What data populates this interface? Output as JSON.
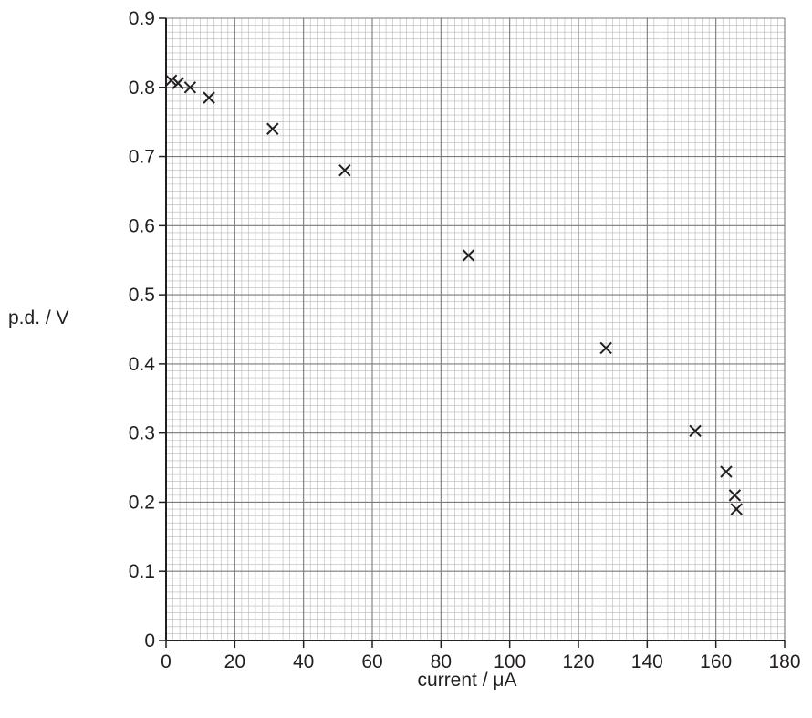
{
  "chart_data": {
    "type": "scatter",
    "title": "",
    "xlabel": "current / μA",
    "ylabel": "p.d. / V",
    "xlim": [
      0,
      180
    ],
    "ylim": [
      0,
      0.9
    ],
    "grid": true,
    "x_ticks": [
      "0",
      "20",
      "40",
      "60",
      "80",
      "100",
      "120",
      "140",
      "160",
      "180"
    ],
    "y_ticks": [
      "0",
      "0.1",
      "0.2",
      "0.3",
      "0.4",
      "0.5",
      "0.6",
      "0.7",
      "0.8",
      "0.9"
    ],
    "series": [
      {
        "marker": "x",
        "color": "#231f20",
        "points": [
          {
            "x": 1.5,
            "y": 0.81
          },
          {
            "x": 3.5,
            "y": 0.806
          },
          {
            "x": 7,
            "y": 0.8
          },
          {
            "x": 12.5,
            "y": 0.785
          },
          {
            "x": 31,
            "y": 0.74
          },
          {
            "x": 52,
            "y": 0.68
          },
          {
            "x": 88,
            "y": 0.557
          },
          {
            "x": 128,
            "y": 0.423
          },
          {
            "x": 154,
            "y": 0.303
          },
          {
            "x": 163,
            "y": 0.244
          },
          {
            "x": 165.5,
            "y": 0.21
          },
          {
            "x": 166,
            "y": 0.19
          }
        ]
      }
    ]
  },
  "colors": {
    "axis": "#231f20",
    "major_grid": "#7a7a7a",
    "minor_grid": "#b8b8b8",
    "marker": "#231f20"
  }
}
